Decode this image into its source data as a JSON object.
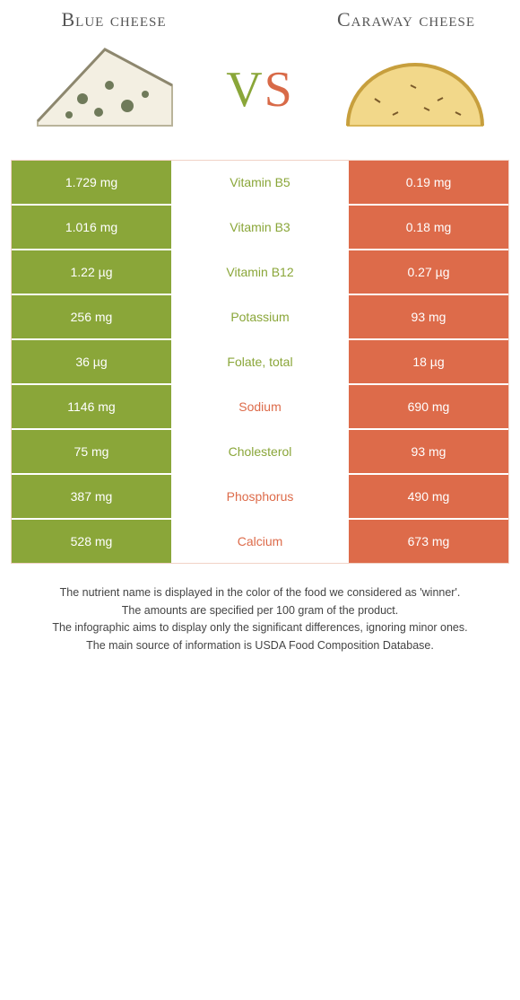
{
  "colors": {
    "left": "#8aa639",
    "right": "#dd6b4a",
    "mid_bg": "#ffffff",
    "row_border": "#ffffff",
    "table_border": "#f1d2c6"
  },
  "header": {
    "left_title": "Blue cheese",
    "right_title": "Caraway cheese",
    "vs_v": "V",
    "vs_s": "S"
  },
  "rows": [
    {
      "left": "1.729 mg",
      "name": "Vitamin B5",
      "right": "0.19 mg",
      "winner": "left"
    },
    {
      "left": "1.016 mg",
      "name": "Vitamin B3",
      "right": "0.18 mg",
      "winner": "left"
    },
    {
      "left": "1.22 µg",
      "name": "Vitamin B12",
      "right": "0.27 µg",
      "winner": "left"
    },
    {
      "left": "256 mg",
      "name": "Potassium",
      "right": "93 mg",
      "winner": "left"
    },
    {
      "left": "36 µg",
      "name": "Folate, total",
      "right": "18 µg",
      "winner": "left"
    },
    {
      "left": "1146 mg",
      "name": "Sodium",
      "right": "690 mg",
      "winner": "right"
    },
    {
      "left": "75 mg",
      "name": "Cholesterol",
      "right": "93 mg",
      "winner": "left"
    },
    {
      "left": "387 mg",
      "name": "Phosphorus",
      "right": "490 mg",
      "winner": "right"
    },
    {
      "left": "528 mg",
      "name": "Calcium",
      "right": "673 mg",
      "winner": "right"
    }
  ],
  "footnotes": [
    "The nutrient name is displayed in the color of the food we considered as 'winner'.",
    "The amounts are specified per 100 gram of the product.",
    "The infographic aims to display only the significant differences, ignoring minor ones.",
    "The main source of information is USDA Food Composition Database."
  ]
}
